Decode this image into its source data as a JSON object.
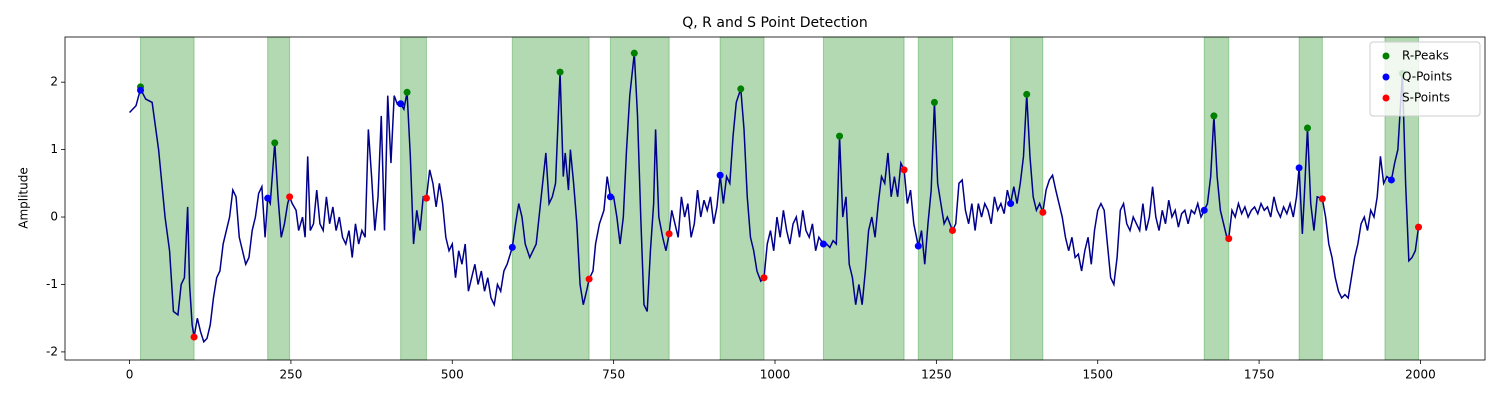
{
  "chart_data": {
    "type": "line",
    "title": "Q, R and S Point Detection",
    "ylabel": "Amplitude",
    "xlim": [
      -100,
      2100
    ],
    "ylim": [
      -2.12,
      2.67
    ],
    "xticks": [
      0,
      250,
      500,
      750,
      1000,
      1250,
      1500,
      1750,
      2000
    ],
    "yticks": [
      -2,
      -1,
      0,
      1,
      2
    ],
    "legend": "upper right",
    "region_color": "green",
    "regions": [
      [
        17,
        100
      ],
      [
        214,
        248
      ],
      [
        420,
        460
      ],
      [
        593,
        712
      ],
      [
        745,
        836
      ],
      [
        915,
        983
      ],
      [
        1075,
        1200
      ],
      [
        1222,
        1275
      ],
      [
        1365,
        1415
      ],
      [
        1665,
        1703
      ],
      [
        1812,
        1848
      ],
      [
        1945,
        1997
      ]
    ],
    "line": {
      "color": "#00008b",
      "x": [
        0,
        10,
        17,
        25,
        35,
        45,
        55,
        62,
        68,
        75,
        80,
        85,
        90,
        93,
        97,
        100,
        105,
        110,
        115,
        120,
        125,
        130,
        135,
        140,
        145,
        150,
        155,
        160,
        165,
        170,
        175,
        180,
        185,
        190,
        195,
        200,
        205,
        210,
        214,
        218,
        225,
        230,
        235,
        240,
        245,
        248,
        252,
        258,
        262,
        268,
        272,
        276,
        280,
        285,
        290,
        295,
        300,
        305,
        310,
        315,
        320,
        325,
        330,
        335,
        340,
        345,
        350,
        355,
        360,
        365,
        370,
        375,
        380,
        385,
        390,
        395,
        400,
        405,
        410,
        415,
        420,
        425,
        430,
        435,
        440,
        445,
        450,
        455,
        460,
        465,
        470,
        475,
        480,
        485,
        490,
        495,
        500,
        505,
        510,
        515,
        520,
        525,
        530,
        535,
        540,
        545,
        550,
        555,
        560,
        565,
        570,
        575,
        580,
        585,
        593,
        598,
        603,
        608,
        613,
        620,
        630,
        640,
        645,
        650,
        655,
        660,
        667,
        672,
        675,
        680,
        683,
        688,
        693,
        698,
        703,
        708,
        712,
        718,
        722,
        728,
        735,
        740,
        745,
        750,
        755,
        760,
        765,
        770,
        775,
        782,
        787,
        792,
        797,
        802,
        807,
        812,
        815,
        820,
        826,
        831,
        836,
        840,
        845,
        850,
        855,
        860,
        865,
        870,
        875,
        880,
        885,
        890,
        895,
        900,
        905,
        910,
        915,
        920,
        925,
        930,
        935,
        940,
        947,
        952,
        957,
        962,
        967,
        972,
        978,
        983,
        988,
        993,
        998,
        1003,
        1008,
        1013,
        1018,
        1023,
        1028,
        1033,
        1038,
        1043,
        1048,
        1053,
        1058,
        1063,
        1068,
        1075,
        1080,
        1085,
        1090,
        1095,
        1100,
        1105,
        1110,
        1115,
        1120,
        1125,
        1130,
        1135,
        1140,
        1145,
        1150,
        1155,
        1160,
        1165,
        1170,
        1175,
        1180,
        1185,
        1190,
        1195,
        1200,
        1205,
        1210,
        1215,
        1222,
        1227,
        1232,
        1237,
        1242,
        1247,
        1252,
        1257,
        1262,
        1267,
        1275,
        1280,
        1285,
        1290,
        1295,
        1300,
        1305,
        1310,
        1315,
        1320,
        1325,
        1330,
        1335,
        1340,
        1345,
        1350,
        1355,
        1360,
        1365,
        1370,
        1375,
        1380,
        1385,
        1390,
        1395,
        1400,
        1405,
        1410,
        1415,
        1420,
        1425,
        1430,
        1435,
        1440,
        1445,
        1450,
        1455,
        1460,
        1465,
        1470,
        1475,
        1480,
        1485,
        1490,
        1495,
        1500,
        1505,
        1510,
        1515,
        1520,
        1525,
        1530,
        1535,
        1540,
        1545,
        1550,
        1555,
        1560,
        1565,
        1570,
        1575,
        1580,
        1585,
        1590,
        1595,
        1600,
        1605,
        1610,
        1615,
        1620,
        1625,
        1630,
        1635,
        1640,
        1645,
        1650,
        1655,
        1660,
        1665,
        1670,
        1675,
        1680,
        1685,
        1690,
        1695,
        1700,
        1703,
        1708,
        1713,
        1718,
        1723,
        1728,
        1733,
        1738,
        1743,
        1748,
        1753,
        1758,
        1763,
        1768,
        1773,
        1778,
        1783,
        1788,
        1793,
        1798,
        1803,
        1808,
        1812,
        1817,
        1820,
        1825,
        1830,
        1835,
        1840,
        1848,
        1853,
        1858,
        1863,
        1868,
        1873,
        1878,
        1883,
        1888,
        1893,
        1898,
        1903,
        1908,
        1913,
        1918,
        1923,
        1928,
        1933,
        1938,
        1943,
        1948,
        1955,
        1960,
        1965,
        1972,
        1977,
        1982,
        1987,
        1992,
        1997,
        2000
      ],
      "values": [
        1.55,
        1.65,
        1.9,
        1.75,
        1.7,
        1.0,
        0.0,
        -0.5,
        -1.4,
        -1.45,
        -1.0,
        -0.9,
        0.15,
        -1.0,
        -1.6,
        -1.78,
        -1.5,
        -1.7,
        -1.85,
        -1.8,
        -1.6,
        -1.2,
        -0.9,
        -0.8,
        -0.4,
        -0.2,
        0.0,
        0.4,
        0.3,
        -0.3,
        -0.5,
        -0.7,
        -0.6,
        -0.2,
        0.0,
        0.35,
        0.45,
        -0.3,
        0.28,
        0.2,
        1.1,
        0.3,
        -0.3,
        -0.1,
        0.2,
        0.3,
        0.2,
        0.1,
        -0.2,
        0.0,
        -0.3,
        0.9,
        -0.2,
        -0.1,
        0.4,
        -0.1,
        -0.2,
        0.3,
        -0.1,
        0.15,
        -0.2,
        0.0,
        -0.3,
        -0.4,
        -0.2,
        -0.6,
        -0.1,
        -0.4,
        -0.2,
        -0.3,
        1.3,
        0.6,
        -0.2,
        0.3,
        1.5,
        -0.2,
        1.8,
        0.8,
        1.8,
        1.67,
        1.68,
        1.6,
        1.85,
        0.9,
        -0.4,
        0.1,
        -0.2,
        0.3,
        0.28,
        0.7,
        0.5,
        0.15,
        0.5,
        0.2,
        -0.3,
        -0.5,
        -0.4,
        -0.9,
        -0.5,
        -0.7,
        -0.4,
        -1.1,
        -0.9,
        -0.7,
        -1.0,
        -0.8,
        -1.1,
        -0.9,
        -1.2,
        -1.3,
        -1.0,
        -1.1,
        -0.8,
        -0.7,
        -0.45,
        -0.1,
        0.2,
        0.0,
        -0.4,
        -0.6,
        -0.4,
        0.5,
        0.95,
        0.2,
        0.3,
        0.5,
        2.15,
        0.6,
        0.95,
        0.4,
        1.0,
        0.5,
        -0.1,
        -1.0,
        -1.3,
        -1.1,
        -0.92,
        -0.8,
        -0.4,
        -0.1,
        0.1,
        0.6,
        0.3,
        0.3,
        0.0,
        -0.4,
        0.0,
        1.0,
        1.8,
        2.43,
        1.5,
        0.0,
        -1.3,
        -1.4,
        -0.5,
        0.2,
        1.3,
        0.0,
        -0.3,
        -0.5,
        -0.25,
        0.1,
        -0.1,
        -0.3,
        0.3,
        0.0,
        0.2,
        -0.3,
        -0.1,
        0.4,
        0.0,
        0.25,
        0.1,
        0.3,
        -0.1,
        0.15,
        0.62,
        0.2,
        0.6,
        0.5,
        1.2,
        1.7,
        1.9,
        1.3,
        0.3,
        -0.3,
        -0.5,
        -0.8,
        -0.95,
        -0.9,
        -0.4,
        -0.2,
        -0.5,
        0.0,
        -0.3,
        0.1,
        -0.2,
        -0.4,
        -0.1,
        0.0,
        -0.3,
        0.1,
        -0.2,
        -0.3,
        -0.1,
        -0.5,
        -0.3,
        -0.4,
        -0.4,
        -0.45,
        -0.35,
        -0.4,
        1.2,
        0.0,
        0.3,
        -0.7,
        -0.9,
        -1.3,
        -1.0,
        -1.3,
        -0.8,
        -0.2,
        0.0,
        -0.3,
        0.2,
        0.6,
        0.5,
        0.95,
        0.3,
        0.6,
        0.3,
        0.8,
        0.7,
        0.2,
        0.4,
        -0.1,
        -0.43,
        -0.2,
        -0.7,
        -0.1,
        0.4,
        1.7,
        0.5,
        0.2,
        -0.1,
        0.0,
        -0.2,
        -0.1,
        0.5,
        0.55,
        0.1,
        -0.1,
        0.2,
        -0.2,
        0.2,
        0.0,
        0.2,
        0.1,
        -0.1,
        0.3,
        0.1,
        0.2,
        0.05,
        0.4,
        0.2,
        0.45,
        0.2,
        0.5,
        0.9,
        1.82,
        0.9,
        0.3,
        0.1,
        0.2,
        0.07,
        0.4,
        0.55,
        0.62,
        0.4,
        0.2,
        0.0,
        -0.3,
        -0.5,
        -0.3,
        -0.6,
        -0.55,
        -0.8,
        -0.5,
        -0.3,
        -0.7,
        -0.2,
        0.1,
        0.2,
        0.1,
        -0.4,
        -0.9,
        -1.0,
        -0.6,
        0.1,
        0.2,
        -0.1,
        -0.2,
        0.0,
        -0.1,
        -0.2,
        0.2,
        -0.2,
        0.0,
        0.45,
        0.0,
        -0.2,
        0.1,
        -0.1,
        0.25,
        0.0,
        0.1,
        -0.15,
        0.05,
        0.1,
        -0.1,
        0.1,
        0.05,
        0.2,
        0.0,
        0.1,
        0.2,
        0.6,
        1.5,
        0.6,
        0.1,
        -0.1,
        -0.3,
        -0.32,
        0.1,
        0.0,
        0.2,
        0.05,
        0.15,
        0.0,
        0.1,
        0.15,
        0.05,
        0.2,
        0.1,
        0.15,
        0.0,
        0.3,
        0.1,
        0.0,
        0.15,
        0.05,
        0.2,
        0.0,
        0.3,
        0.73,
        -0.25,
        0.3,
        1.32,
        0.2,
        -0.2,
        0.3,
        0.27,
        0.0,
        -0.4,
        -0.6,
        -0.9,
        -1.1,
        -1.2,
        -1.15,
        -1.2,
        -0.9,
        -0.6,
        -0.4,
        -0.1,
        0.0,
        -0.2,
        0.1,
        0.0,
        0.3,
        0.9,
        0.5,
        0.6,
        0.55,
        0.8,
        1.0,
        2.13,
        0.5,
        -0.65,
        -0.6,
        -0.5,
        -0.15,
        -0.15
      ]
    },
    "series": [
      {
        "name": "R-Peaks",
        "color": "green",
        "x": [
          17,
          225,
          430,
          667,
          782,
          947,
          1100,
          1247,
          1390,
          1680,
          1825,
          1972
        ],
        "values": [
          1.93,
          1.1,
          1.85,
          2.15,
          2.43,
          1.9,
          1.2,
          1.7,
          1.82,
          1.5,
          1.32,
          2.13
        ]
      },
      {
        "name": "Q-Points",
        "color": "blue",
        "x": [
          17,
          214,
          420,
          593,
          745,
          915,
          1075,
          1222,
          1365,
          1665,
          1812,
          1955
        ],
        "values": [
          1.88,
          0.28,
          1.68,
          -0.45,
          0.3,
          0.62,
          -0.4,
          -0.43,
          0.2,
          0.1,
          0.73,
          0.55
        ]
      },
      {
        "name": "S-Points",
        "color": "red",
        "x": [
          100,
          248,
          460,
          712,
          836,
          983,
          1200,
          1275,
          1415,
          1703,
          1848,
          1997
        ],
        "values": [
          -1.78,
          0.3,
          0.28,
          -0.92,
          -0.25,
          -0.9,
          0.7,
          -0.2,
          0.07,
          -0.32,
          0.27,
          -0.15
        ]
      }
    ]
  }
}
